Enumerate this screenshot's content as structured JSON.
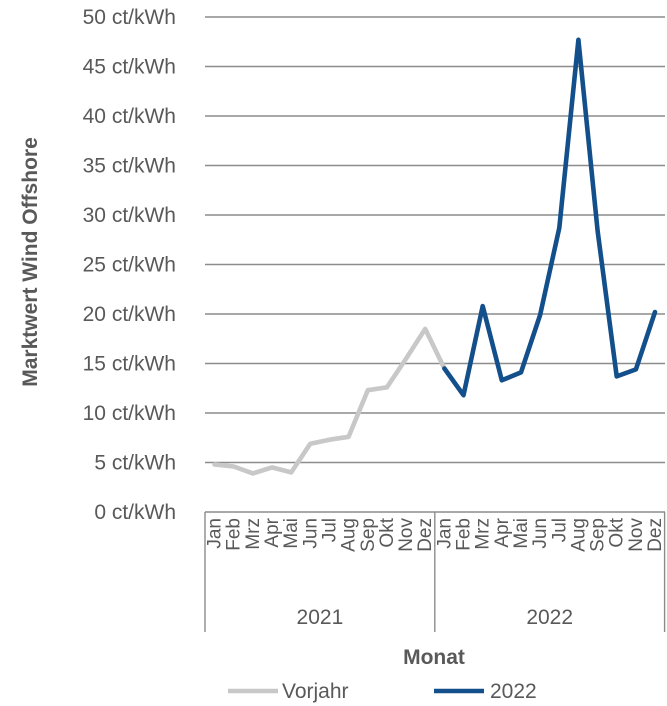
{
  "chart_data": {
    "type": "line",
    "ylabel": "Marktwert Wind Offshore",
    "xlabel": "Monat",
    "y_unit": "ct/kWh",
    "ylim": [
      0,
      50
    ],
    "y_ticks": [
      0,
      5,
      10,
      15,
      20,
      25,
      30,
      35,
      40,
      45,
      50
    ],
    "y_tick_labels": [
      "0 ct/kWh",
      "5 ct/kWh",
      "10 ct/kWh",
      "15 ct/kWh",
      "20 ct/kWh",
      "25 ct/kWh",
      "30 ct/kWh",
      "35 ct/kWh",
      "40 ct/kWh",
      "45 ct/kWh",
      "50 ct/kWh"
    ],
    "grid": true,
    "legend_position": "bottom",
    "groups": [
      {
        "label": "2021",
        "months": [
          "Jan",
          "Feb",
          "Mrz",
          "Apr",
          "Mai",
          "Jun",
          "Jul",
          "Aug",
          "Sep",
          "Okt",
          "Nov",
          "Dez"
        ]
      },
      {
        "label": "2022",
        "months": [
          "Jan",
          "Feb",
          "Mrz",
          "Apr",
          "Mai",
          "Jun",
          "Jul",
          "Aug",
          "Sep",
          "Okt",
          "Nov",
          "Dez"
        ]
      }
    ],
    "series": [
      {
        "name": "Vorjahr",
        "color": "#c8c8c8",
        "values": [
          4.8,
          4.6,
          3.9,
          4.5,
          4.0,
          6.9,
          7.3,
          7.6,
          12.3,
          12.6,
          15.5,
          18.5,
          14.5,
          null,
          null,
          null,
          null,
          null,
          null,
          null,
          null,
          null,
          null,
          null
        ]
      },
      {
        "name": "2022",
        "color": "#134f8a",
        "values": [
          null,
          null,
          null,
          null,
          null,
          null,
          null,
          null,
          null,
          null,
          null,
          null,
          14.5,
          11.8,
          20.8,
          13.3,
          14.1,
          19.9,
          28.7,
          47.7,
          28.4,
          13.7,
          14.4,
          20.2
        ]
      }
    ]
  }
}
